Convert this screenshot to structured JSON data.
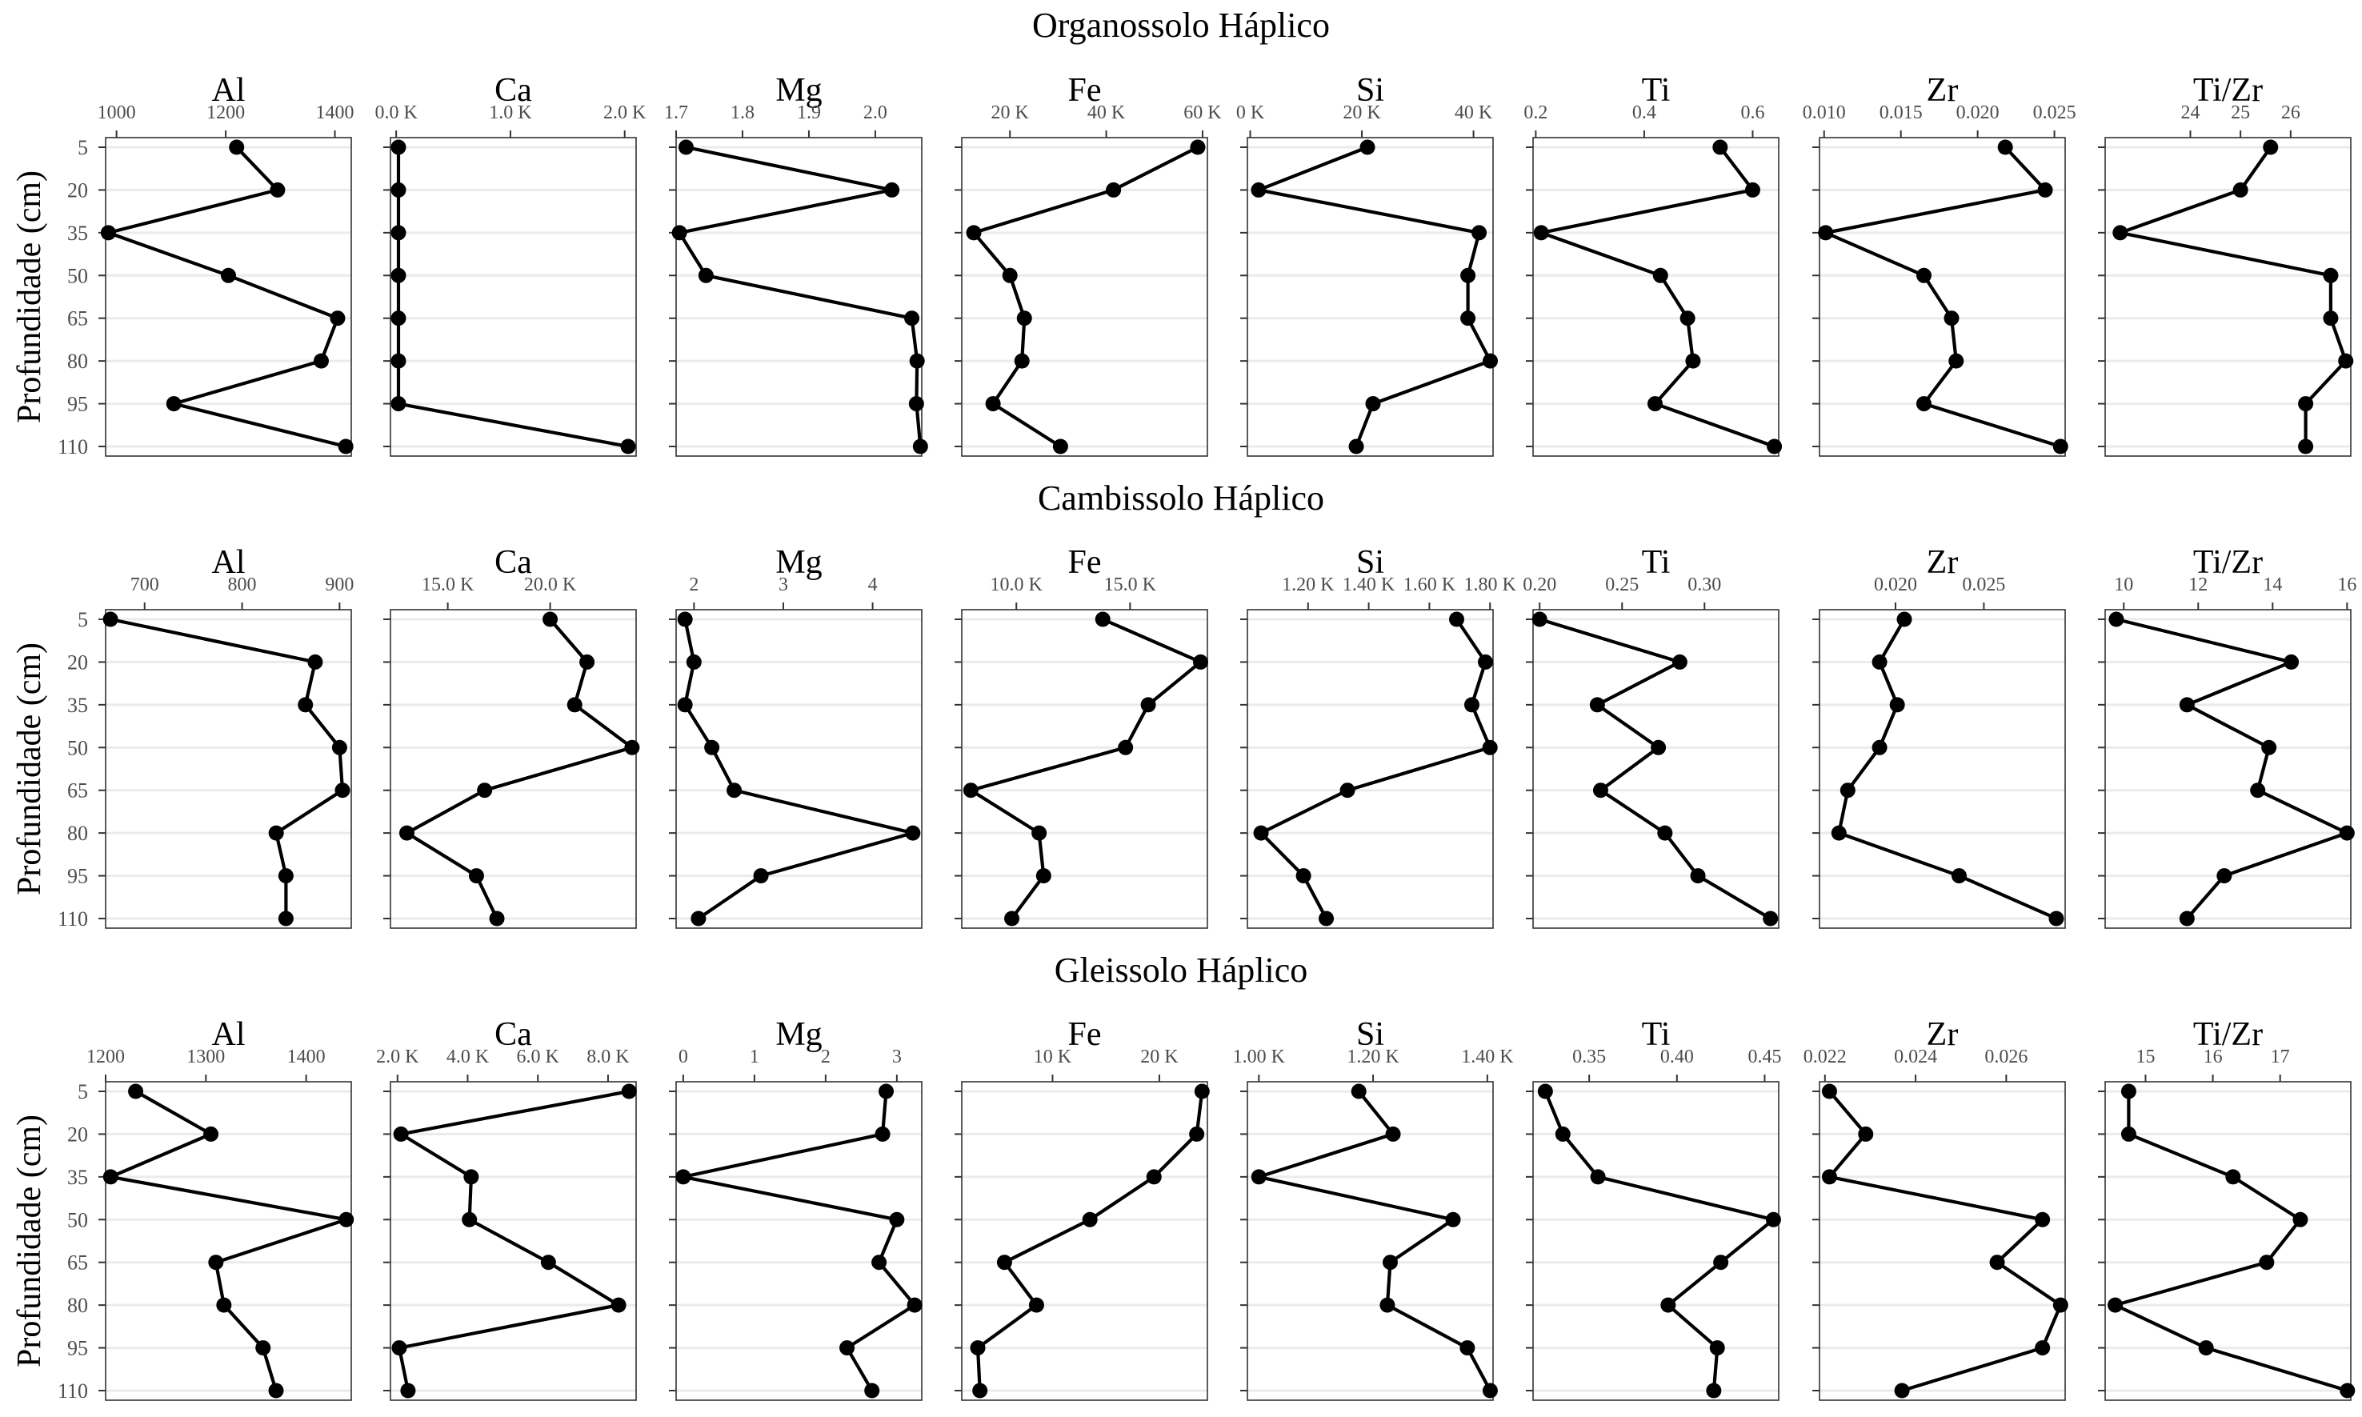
{
  "chart_data": {
    "type": "line",
    "ylabel": "Profundidade (cm)",
    "y_ticks": [
      5,
      20,
      35,
      50,
      65,
      80,
      95,
      110
    ],
    "grid": "horizontal",
    "rows": [
      {
        "title": "Organossolo Háplico",
        "panels": [
          {
            "name": "Al",
            "xlim": [
              980,
              1430
            ],
            "ticks": [
              1000,
              1200,
              1400
            ],
            "tick_labels": [
              "1000",
              "1200",
              "1400"
            ],
            "values": [
              1220,
              1295,
              985,
              1205,
              1405,
              1375,
              1105,
              1420
            ]
          },
          {
            "name": "Ca",
            "xlim": [
              -50,
              2100
            ],
            "ticks": [
              0,
              1000,
              2000
            ],
            "tick_labels": [
              "0.0 K",
              "1.0 K",
              "2.0 K"
            ],
            "values": [
              20,
              20,
              20,
              20,
              20,
              20,
              20,
              2030
            ]
          },
          {
            "name": "Mg",
            "xlim": [
              1.7,
              2.07
            ],
            "ticks": [
              1.7,
              1.8,
              1.9,
              2.0
            ],
            "tick_labels": [
              "1.7",
              "1.8",
              "1.9",
              "2.0"
            ],
            "values": [
              1.715,
              2.025,
              1.705,
              1.745,
              2.055,
              2.063,
              2.062,
              2.068
            ]
          },
          {
            "name": "Fe",
            "xlim": [
              10000,
              61000
            ],
            "ticks": [
              20000,
              40000,
              60000
            ],
            "tick_labels": [
              "20 K",
              "40 K",
              "60 K"
            ],
            "values": [
              59000,
              41500,
              12500,
              20000,
              23000,
              22500,
              16500,
              30500
            ]
          },
          {
            "name": "Si",
            "xlim": [
              -500,
              43500
            ],
            "ticks": [
              0,
              20000,
              40000
            ],
            "tick_labels": [
              "0 K",
              "20 K",
              "40 K"
            ],
            "values": [
              21000,
              1500,
              41000,
              39000,
              39000,
              43000,
              22000,
              19000
            ]
          },
          {
            "name": "Ti",
            "xlim": [
              0.195,
              0.648
            ],
            "ticks": [
              0.2,
              0.4,
              0.6
            ],
            "tick_labels": [
              "0.2",
              "0.4",
              "0.6"
            ],
            "values": [
              0.54,
              0.6,
              0.21,
              0.43,
              0.48,
              0.49,
              0.42,
              0.64
            ]
          },
          {
            "name": "Zr",
            "xlim": [
              0.0097,
              0.0257
            ],
            "ticks": [
              0.01,
              0.015,
              0.02,
              0.025
            ],
            "tick_labels": [
              "0.010",
              "0.015",
              "0.020",
              "0.025"
            ],
            "values": [
              0.0218,
              0.0244,
              0.0101,
              0.0165,
              0.0183,
              0.0186,
              0.0165,
              0.0254
            ]
          },
          {
            "name": "Ti/Zr",
            "xlim": [
              22.3,
              27.2
            ],
            "ticks": [
              24,
              25,
              26
            ],
            "tick_labels": [
              "24",
              "25",
              "26"
            ],
            "values": [
              25.6,
              25.0,
              22.6,
              26.8,
              26.8,
              27.1,
              26.3,
              26.3
            ]
          }
        ]
      },
      {
        "title": "Cambissolo Háplico",
        "panels": [
          {
            "name": "Al",
            "xlim": [
              660,
              912
            ],
            "ticks": [
              700,
              800,
              900
            ],
            "tick_labels": [
              "700",
              "800",
              "900"
            ],
            "values": [
              665,
              875,
              865,
              900,
              903,
              835,
              845,
              845
            ]
          },
          {
            "name": "Ca",
            "xlim": [
              12200,
              24200
            ],
            "ticks": [
              15000,
              20000
            ],
            "tick_labels": [
              "15.0 K",
              "20.0 K"
            ],
            "values": [
              20000,
              21800,
              21200,
              24000,
              16800,
              13000,
              16400,
              17400
            ]
          },
          {
            "name": "Mg",
            "xlim": [
              1.8,
              4.55
            ],
            "ticks": [
              2,
              3,
              4
            ],
            "tick_labels": [
              "2",
              "3",
              "4"
            ],
            "values": [
              1.9,
              2.0,
              1.9,
              2.2,
              2.45,
              4.45,
              2.75,
              2.05
            ]
          },
          {
            "name": "Fe",
            "xlim": [
              7600,
              18400
            ],
            "ticks": [
              10000,
              15000
            ],
            "tick_labels": [
              "10.0 K",
              "15.0 K"
            ],
            "values": [
              13800,
              18100,
              15800,
              14800,
              8000,
              11000,
              11200,
              9800
            ]
          },
          {
            "name": "Si",
            "xlim": [
              1000,
              1810
            ],
            "ticks": [
              1200,
              1400,
              1600,
              1800
            ],
            "tick_labels": [
              "1.20 K",
              "1.40 K",
              "1.60 K",
              "1.80 K"
            ],
            "values": [
              1690,
              1785,
              1740,
              1800,
              1330,
              1045,
              1185,
              1260
            ]
          },
          {
            "name": "Ti",
            "xlim": [
              0.196,
              0.345
            ],
            "ticks": [
              0.2,
              0.25,
              0.3
            ],
            "tick_labels": [
              "0.20",
              "0.25",
              "0.30"
            ],
            "values": [
              0.2,
              0.285,
              0.235,
              0.272,
              0.237,
              0.276,
              0.296,
              0.34
            ]
          },
          {
            "name": "Zr",
            "xlim": [
              0.0157,
              0.0296
            ],
            "ticks": [
              0.02,
              0.025
            ],
            "tick_labels": [
              "0.020",
              "0.025"
            ],
            "values": [
              0.0205,
              0.0191,
              0.0201,
              0.0191,
              0.0173,
              0.0168,
              0.0236,
              0.0291
            ]
          },
          {
            "name": "Ti/Zr",
            "xlim": [
              9.5,
              16.1
            ],
            "ticks": [
              10,
              12,
              14,
              16
            ],
            "tick_labels": [
              "10",
              "12",
              "14",
              "16"
            ],
            "values": [
              9.8,
              14.5,
              11.7,
              13.9,
              13.6,
              16.0,
              12.7,
              11.7
            ]
          }
        ]
      },
      {
        "title": "Gleissolo Háplico",
        "panels": [
          {
            "name": "Al",
            "xlim": [
              1200,
              1445
            ],
            "ticks": [
              1200,
              1300,
              1400
            ],
            "tick_labels": [
              "1200",
              "1300",
              "1400"
            ],
            "values": [
              1230,
              1305,
              1205,
              1440,
              1310,
              1318,
              1357,
              1370
            ]
          },
          {
            "name": "Ca",
            "xlim": [
              1800,
              8800
            ],
            "ticks": [
              2000,
              4000,
              6000,
              8000
            ],
            "tick_labels": [
              "2.0 K",
              "4.0 K",
              "6.0 K",
              "8.0 K"
            ],
            "values": [
              8600,
              2100,
              4100,
              4050,
              6300,
              8300,
              2050,
              2300
            ]
          },
          {
            "name": "Mg",
            "xlim": [
              -0.1,
              3.35
            ],
            "ticks": [
              0,
              1,
              2,
              3
            ],
            "tick_labels": [
              "0",
              "1",
              "2",
              "3"
            ],
            "values": [
              2.85,
              2.8,
              0.0,
              3.0,
              2.75,
              3.25,
              2.3,
              2.65
            ]
          },
          {
            "name": "Fe",
            "xlim": [
              1500,
              24500
            ],
            "ticks": [
              10000,
              20000
            ],
            "tick_labels": [
              "10 K",
              "20 K"
            ],
            "values": [
              24000,
              23500,
              19500,
              13500,
              5500,
              8500,
              3000,
              3200
            ]
          },
          {
            "name": "Si",
            "xlim": [
              980,
              1410
            ],
            "ticks": [
              1000,
              1200,
              1400
            ],
            "tick_labels": [
              "1.00 K",
              "1.20 K",
              "1.40 K"
            ],
            "values": [
              1175,
              1235,
              1000,
              1340,
              1230,
              1225,
              1365,
              1405
            ]
          },
          {
            "name": "Ti",
            "xlim": [
              0.318,
              0.458
            ],
            "ticks": [
              0.35,
              0.4,
              0.45
            ],
            "tick_labels": [
              "0.35",
              "0.40",
              "0.45"
            ],
            "values": [
              0.325,
              0.335,
              0.355,
              0.455,
              0.425,
              0.395,
              0.423,
              0.421
            ]
          },
          {
            "name": "Zr",
            "xlim": [
              0.02188,
              0.0273
            ],
            "ticks": [
              0.022,
              0.024,
              0.026
            ],
            "tick_labels": [
              "0.022",
              "0.024",
              "0.026"
            ],
            "values": [
              0.0221,
              0.0229,
              0.0221,
              0.0268,
              0.0258,
              0.0272,
              0.0268,
              0.0237
            ]
          },
          {
            "name": "Ti/Zr",
            "xlim": [
              14.4,
              18.05
            ],
            "ticks": [
              15,
              16,
              17
            ],
            "tick_labels": [
              "15",
              "16",
              "17"
            ],
            "values": [
              14.75,
              14.75,
              16.3,
              17.3,
              16.8,
              14.55,
              15.9,
              18.0
            ]
          }
        ]
      }
    ]
  }
}
